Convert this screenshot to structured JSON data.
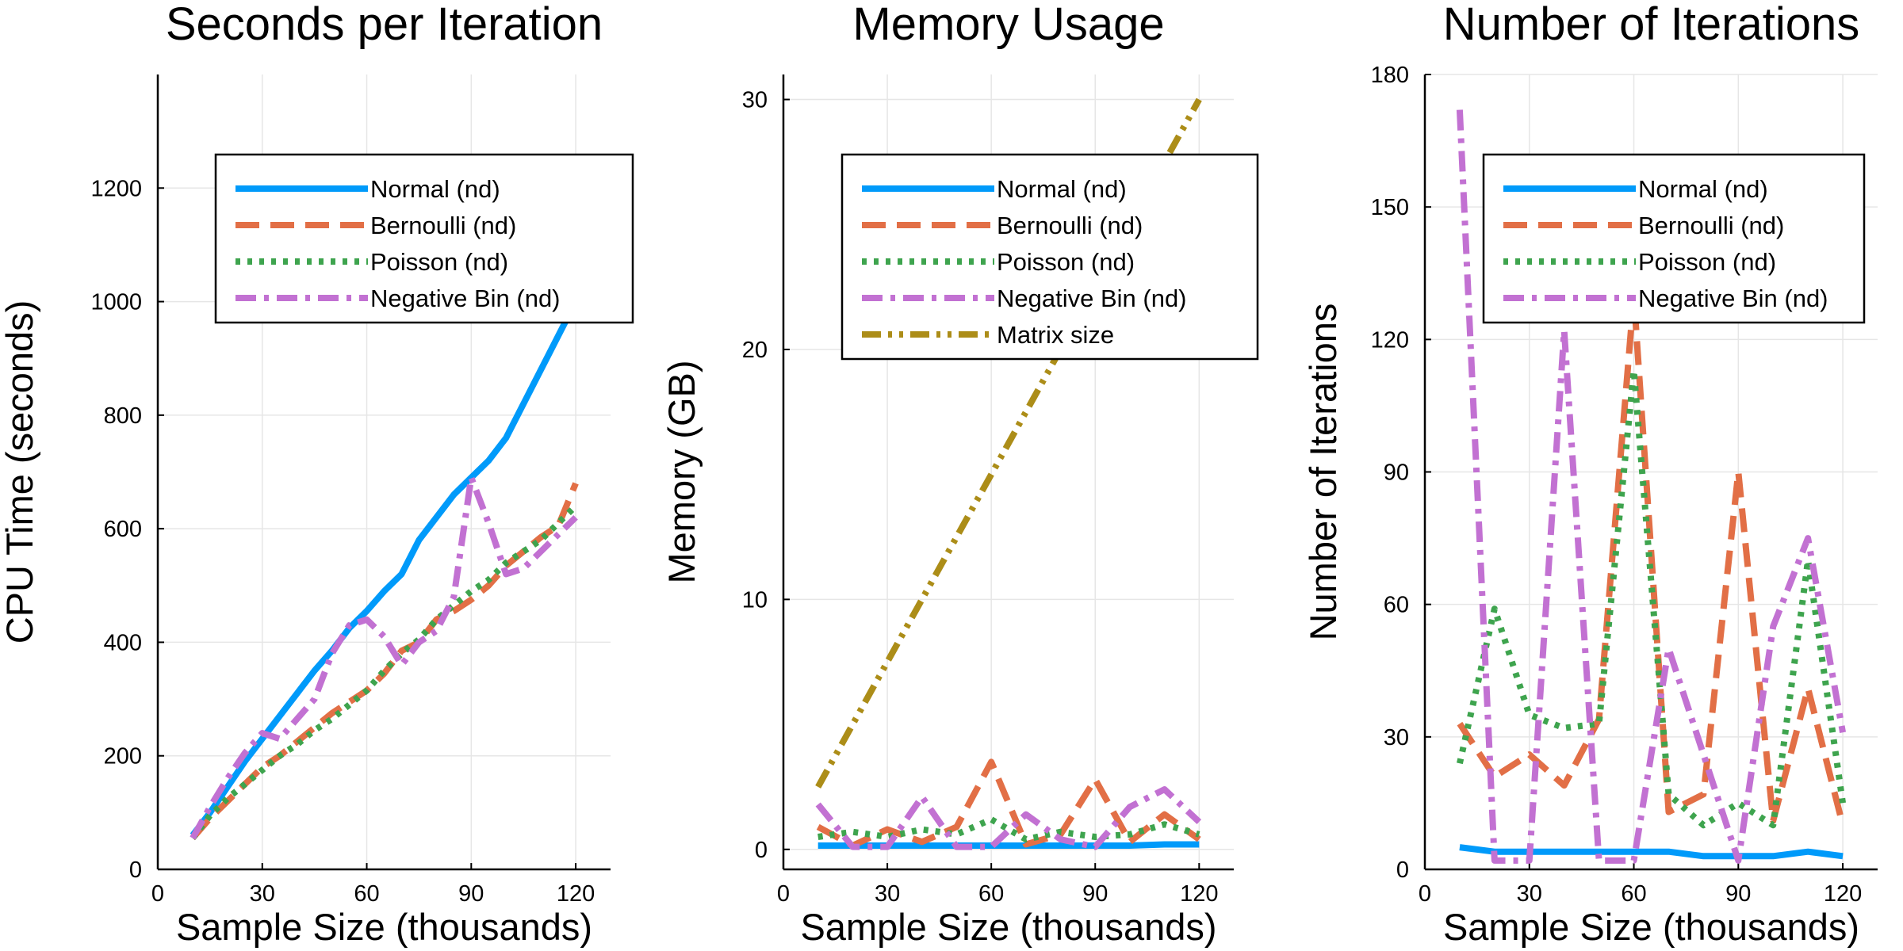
{
  "chart_data": [
    {
      "type": "line",
      "title": "Seconds per Iteration",
      "xlabel": "Sample Size (thousands)",
      "ylabel": "CPU Time (seconds)",
      "xlim": [
        0,
        130
      ],
      "ylim": [
        0,
        1400
      ],
      "xticks": [
        0,
        30,
        60,
        90,
        120
      ],
      "yticks": [
        0,
        200,
        400,
        600,
        800,
        1000,
        1200
      ],
      "legend_position": "top-right",
      "x": [
        10,
        15,
        20,
        25,
        30,
        35,
        40,
        45,
        50,
        55,
        60,
        65,
        70,
        75,
        80,
        85,
        90,
        95,
        100,
        105,
        110,
        115,
        120
      ],
      "series": [
        {
          "name": "Normal (nd)",
          "values": [
            60,
            100,
            145,
            190,
            230,
            270,
            310,
            350,
            385,
            425,
            455,
            490,
            520,
            580,
            620,
            660,
            690,
            720,
            760,
            820,
            880,
            940,
            1000
          ]
        },
        {
          "name": "Bernoulli (nd)",
          "values": [
            55,
            90,
            120,
            150,
            180,
            200,
            225,
            250,
            275,
            295,
            315,
            345,
            385,
            400,
            440,
            455,
            475,
            500,
            535,
            560,
            585,
            605,
            680
          ]
        },
        {
          "name": "Poisson (nd)",
          "values": [
            55,
            95,
            125,
            150,
            175,
            200,
            220,
            245,
            265,
            290,
            315,
            350,
            380,
            405,
            440,
            465,
            490,
            510,
            540,
            560,
            580,
            610,
            640
          ]
        },
        {
          "name": "Negative Bin (nd)",
          "values": [
            55,
            110,
            160,
            205,
            240,
            230,
            265,
            300,
            380,
            430,
            440,
            410,
            360,
            400,
            420,
            480,
            690,
            610,
            520,
            530,
            560,
            590,
            620
          ]
        }
      ]
    },
    {
      "type": "line",
      "title": "Memory Usage",
      "xlabel": "Sample Size (thousands)",
      "ylabel": "Memory (GB)",
      "xlim": [
        0,
        130
      ],
      "ylim": [
        -0.8,
        31
      ],
      "xticks": [
        0,
        30,
        60,
        90,
        120
      ],
      "yticks": [
        0,
        10,
        20,
        30
      ],
      "legend_position": "top-right",
      "x": [
        10,
        20,
        30,
        40,
        50,
        60,
        70,
        80,
        90,
        100,
        110,
        120
      ],
      "series": [
        {
          "name": "Normal (nd)",
          "values": [
            0.15,
            0.15,
            0.15,
            0.15,
            0.15,
            0.15,
            0.15,
            0.15,
            0.15,
            0.15,
            0.2,
            0.2
          ]
        },
        {
          "name": "Bernoulli (nd)",
          "values": [
            0.9,
            0.15,
            0.8,
            0.3,
            0.9,
            3.5,
            0.2,
            0.6,
            2.8,
            0.3,
            1.4,
            0.4
          ]
        },
        {
          "name": "Poisson (nd)",
          "values": [
            0.5,
            0.7,
            0.5,
            0.8,
            0.6,
            1.2,
            0.4,
            0.7,
            0.5,
            0.6,
            1.0,
            0.6
          ]
        },
        {
          "name": "Negative Bin (nd)",
          "values": [
            1.8,
            0.1,
            0.1,
            2.1,
            0.1,
            0.1,
            1.4,
            0.4,
            0.1,
            1.7,
            2.4,
            1.1
          ]
        },
        {
          "name": "Matrix size",
          "values": [
            2.5,
            5,
            7.5,
            10,
            12.5,
            15,
            17.5,
            20,
            22.5,
            25,
            27.5,
            30
          ]
        }
      ]
    },
    {
      "type": "line",
      "title": "Number of Iterations",
      "xlabel": "Sample Size (thousands)",
      "ylabel": "Number of Iterations",
      "xlim": [
        0,
        130
      ],
      "ylim": [
        0,
        180
      ],
      "xticks": [
        0,
        30,
        60,
        90,
        120
      ],
      "yticks": [
        0,
        30,
        60,
        90,
        120,
        150,
        180
      ],
      "legend_position": "top-right",
      "x": [
        10,
        20,
        30,
        40,
        50,
        60,
        70,
        80,
        90,
        100,
        110,
        120
      ],
      "series": [
        {
          "name": "Normal (nd)",
          "values": [
            5,
            4,
            4,
            4,
            4,
            4,
            4,
            3,
            3,
            3,
            4,
            3
          ]
        },
        {
          "name": "Bernoulli (nd)",
          "values": [
            33,
            21,
            26,
            19,
            34,
            130,
            13,
            17,
            90,
            11,
            41,
            10
          ]
        },
        {
          "name": "Poisson (nd)",
          "values": [
            24,
            59,
            35,
            32,
            33,
            113,
            17,
            10,
            15,
            10,
            70,
            15
          ]
        },
        {
          "name": "Negative Bin (nd)",
          "values": [
            172,
            2,
            2,
            122,
            2,
            2,
            50,
            26,
            2,
            55,
            75,
            31
          ]
        }
      ]
    }
  ],
  "styles": {
    "series_colors": [
      "#009AFA",
      "#E26F46",
      "#3EA44E",
      "#C271D2",
      "#AC8D18"
    ],
    "series_dash": [
      "solid",
      "dash",
      "dot",
      "dashdot",
      "dashdotdot"
    ],
    "grid_color": "#E6E6E6"
  }
}
